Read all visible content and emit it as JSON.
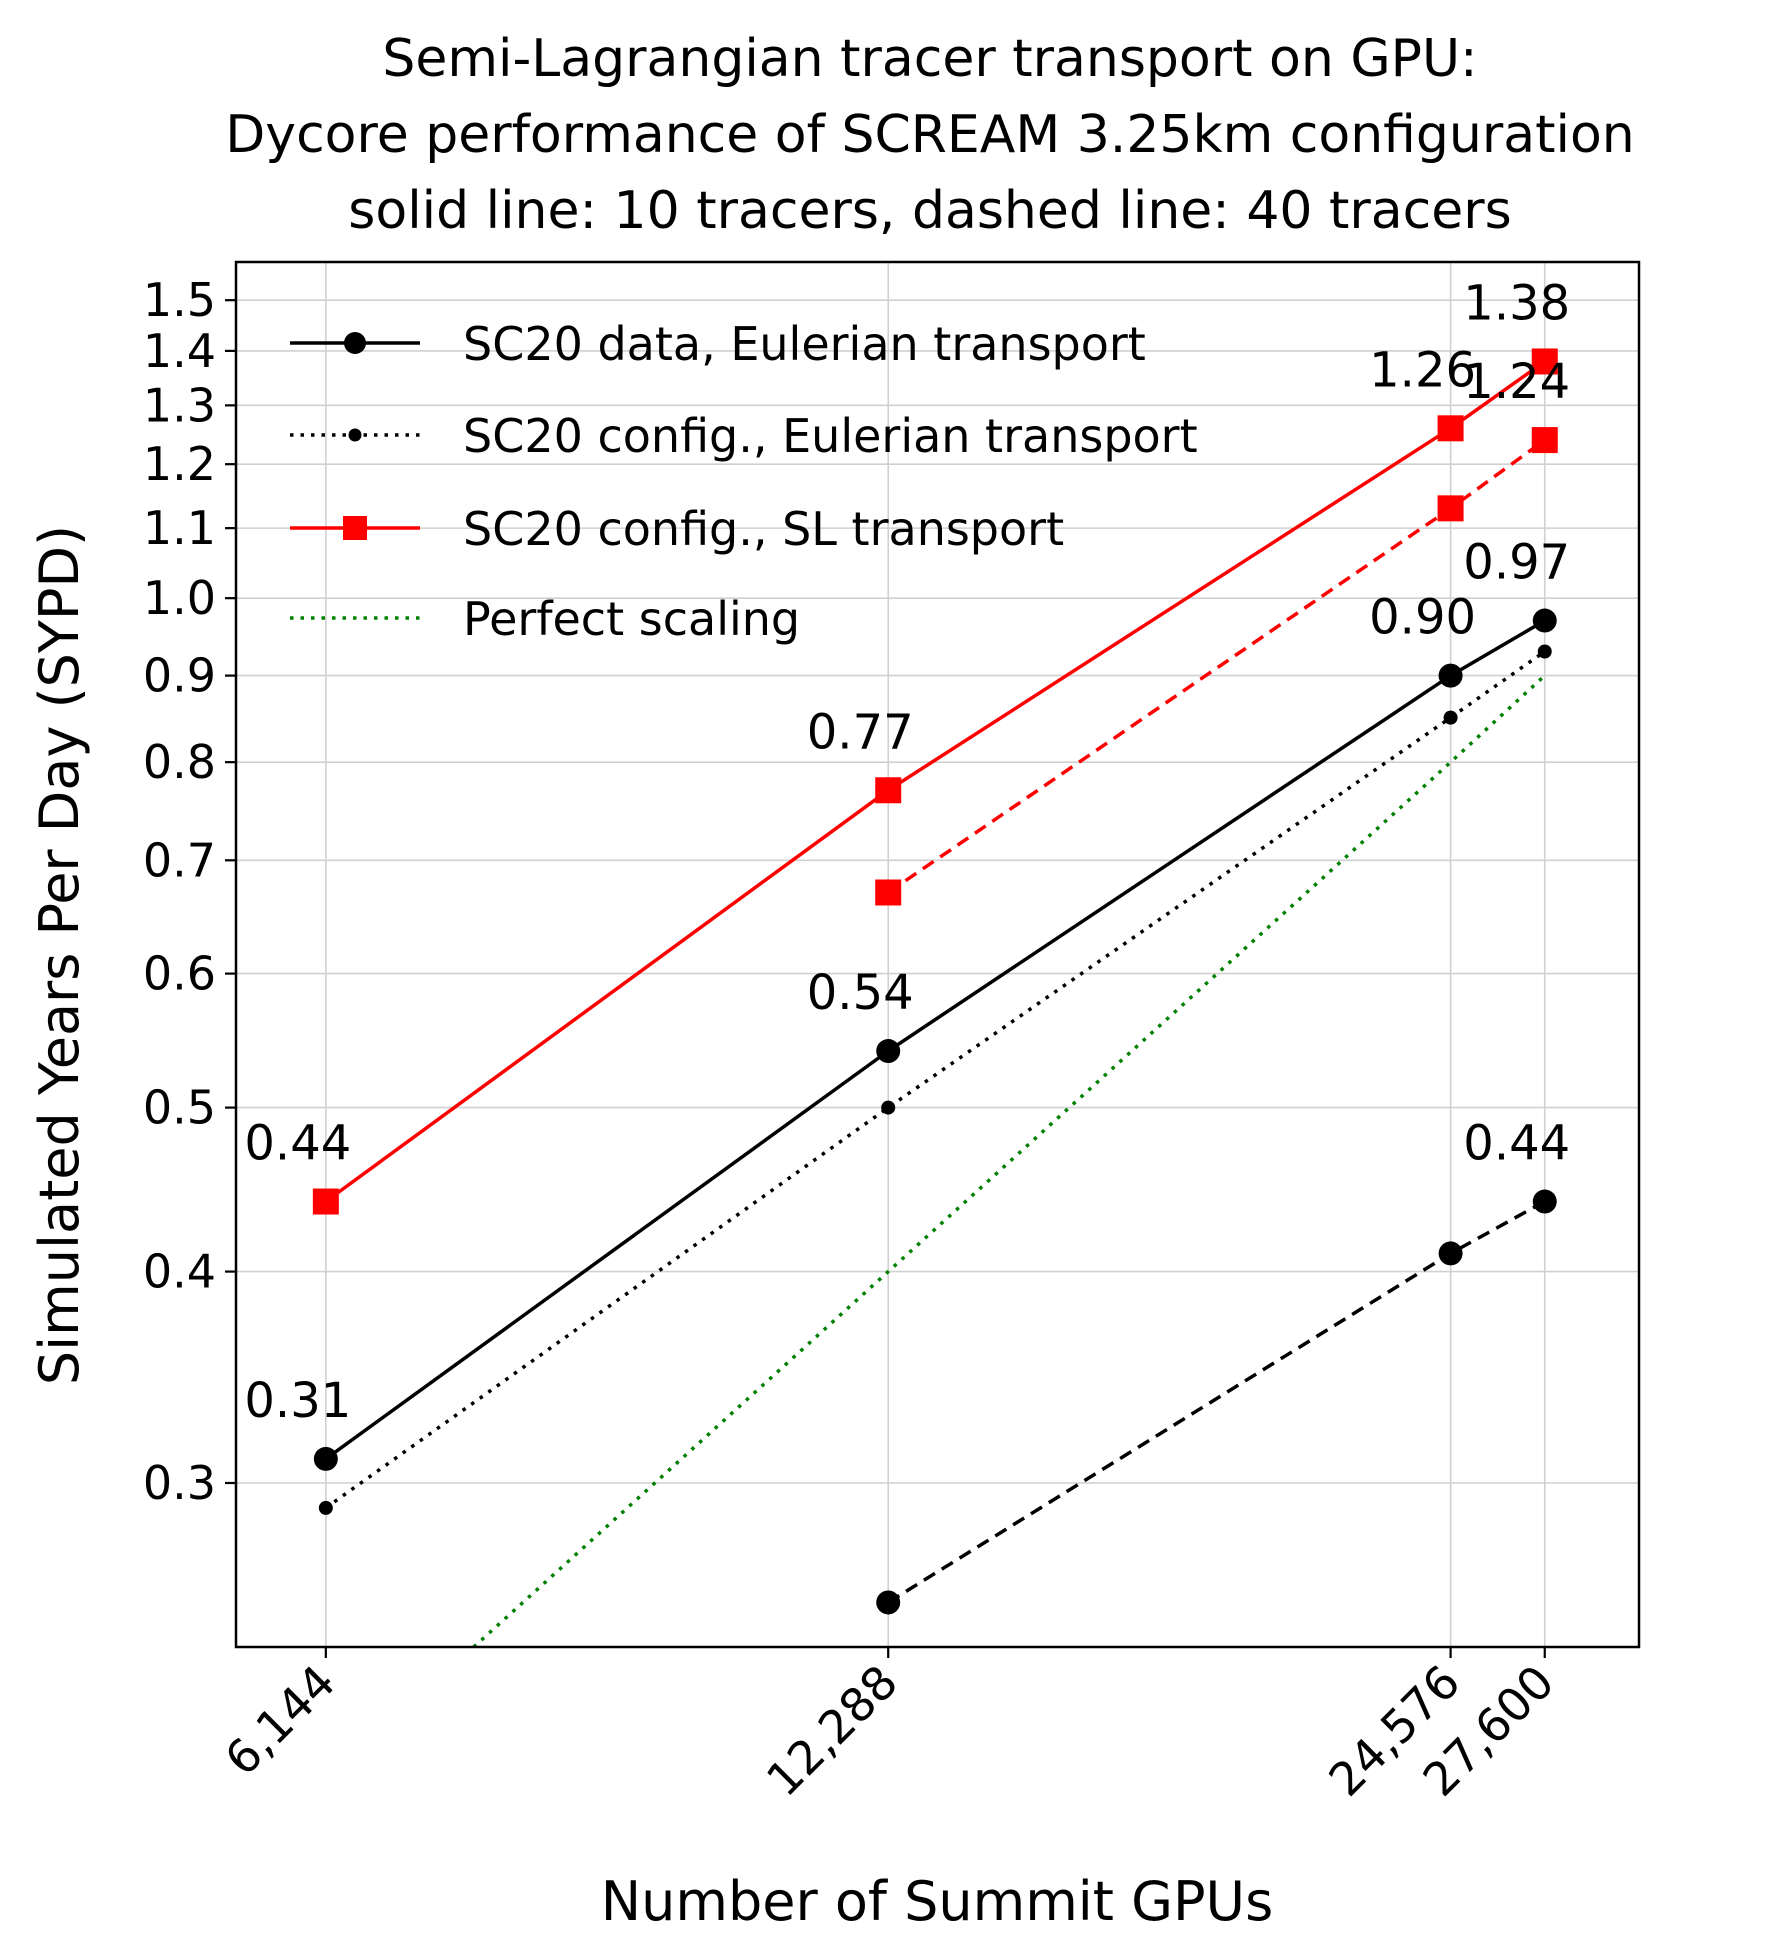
{
  "chart_data": {
    "type": "line",
    "title_lines": [
      "Semi-Lagrangian tracer transport on GPU:",
      "Dycore performance of SCREAM 3.25km configuration",
      "solid line: 10 tracers, dashed line: 40 tracers"
    ],
    "xlabel": "Number of Summit GPUs",
    "ylabel": "Simulated Years Per Day (SYPD)",
    "x_scale": "log",
    "y_scale": "log",
    "xlim": [
      5500,
      31000
    ],
    "ylim": [
      0.24,
      1.58
    ],
    "x_ticks": [
      6144,
      12288,
      24576,
      27600
    ],
    "x_tick_labels": [
      "6,144",
      "12,288",
      "24,576",
      "27,600"
    ],
    "y_ticks": [
      0.3,
      0.4,
      0.5,
      0.6,
      0.7,
      0.8,
      0.9,
      1.0,
      1.1,
      1.2,
      1.3,
      1.4,
      1.5
    ],
    "y_tick_labels": [
      "0.3",
      "0.4",
      "0.5",
      "0.6",
      "0.7",
      "0.8",
      "0.9",
      "1.0",
      "1.1",
      "1.2",
      "1.3",
      "1.4",
      "1.5"
    ],
    "grid": true,
    "legend_position": "top-left",
    "legend": [
      {
        "label": "SC20 data, Eulerian transport",
        "color": "#000000",
        "line": "solid",
        "marker": "circle"
      },
      {
        "label": "SC20 config., Eulerian transport",
        "color": "#000000",
        "line": "dotted",
        "marker": "small-circle"
      },
      {
        "label": "SC20 config., SL transport",
        "color": "#ff0000",
        "line": "solid",
        "marker": "square"
      },
      {
        "label": "Perfect scaling",
        "color": "#008000",
        "line": "dotted",
        "marker": "none"
      }
    ],
    "series": [
      {
        "name": "SC20 data, Eulerian transport",
        "tracers": 10,
        "color": "#000000",
        "line": "solid",
        "marker": "circle",
        "x": [
          6144,
          12288,
          24576,
          27600
        ],
        "y": [
          0.31,
          0.54,
          0.9,
          0.97
        ]
      },
      {
        "tracers": 40,
        "color": "#000000",
        "line": "dashed",
        "marker": "circle",
        "x": [
          12288,
          24576,
          27600
        ],
        "y": [
          0.255,
          0.41,
          0.44
        ]
      },
      {
        "name": "SC20 config., Eulerian transport",
        "color": "#000000",
        "line": "dotted",
        "marker": "small-circle",
        "x": [
          6144,
          12288,
          24576,
          27600
        ],
        "y": [
          0.29,
          0.5,
          0.85,
          0.93
        ]
      },
      {
        "name": "SC20 config., SL transport",
        "tracers": 10,
        "color": "#ff0000",
        "line": "solid",
        "marker": "square",
        "x": [
          6144,
          12288,
          24576,
          27600
        ],
        "y": [
          0.44,
          0.77,
          1.26,
          1.38
        ]
      },
      {
        "tracers": 40,
        "color": "#ff0000",
        "line": "dashed",
        "marker": "square",
        "x": [
          12288,
          24576,
          27600
        ],
        "y": [
          0.67,
          1.13,
          1.24
        ]
      },
      {
        "name": "Perfect scaling",
        "color": "#008000",
        "line": "dotted",
        "marker": "none",
        "x": [
          6144,
          12288,
          24576,
          27600
        ],
        "y": [
          0.2,
          0.4,
          0.8,
          0.9
        ]
      }
    ],
    "annotations": [
      {
        "text": "0.44",
        "x": 6144,
        "y": 0.44
      },
      {
        "text": "0.31",
        "x": 6144,
        "y": 0.31
      },
      {
        "text": "0.77",
        "x": 12288,
        "y": 0.77
      },
      {
        "text": "0.54",
        "x": 12288,
        "y": 0.54
      },
      {
        "text": "1.26",
        "x": 24576,
        "y": 1.26
      },
      {
        "text": "0.90",
        "x": 24576,
        "y": 0.9
      },
      {
        "text": "1.38",
        "x": 27600,
        "y": 1.38
      },
      {
        "text": "1.24",
        "x": 27600,
        "y": 1.24
      },
      {
        "text": "0.97",
        "x": 27600,
        "y": 0.97
      },
      {
        "text": "0.44",
        "x": 27600,
        "y": 0.44
      }
    ]
  }
}
